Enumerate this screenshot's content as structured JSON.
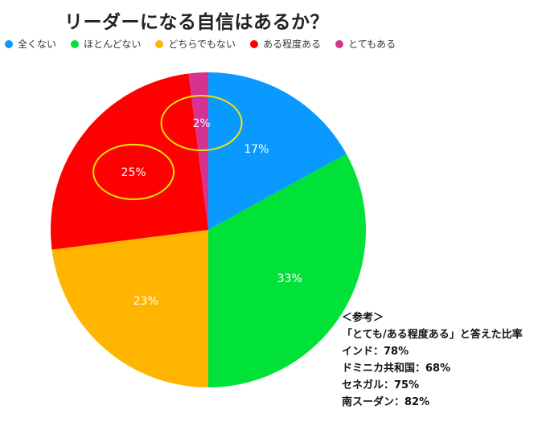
{
  "chart_data": {
    "type": "pie",
    "title": "リーダーになる自信はあるか？",
    "categories": [
      "全くない",
      "ほとんどない",
      "どちらでもない",
      "ある程度ある",
      "とてもある"
    ],
    "values": [
      17,
      33,
      23,
      25,
      2
    ],
    "labels": [
      "17%",
      "33%",
      "23%",
      "25%",
      "2%"
    ],
    "colors": [
      "#0a99ff",
      "#00e238",
      "#ffb400",
      "#ff0000",
      "#d63291"
    ],
    "legend_position": "top-left",
    "highlight_color": "#f0e600",
    "highlighted_slices": [
      "ある程度ある",
      "とてもある"
    ]
  },
  "note": {
    "lines": [
      "＜参考＞",
      "「とても/ある程度ある」と答えた比率",
      "インド：78%",
      "ドミニカ共和国：68%",
      "セネガル：75%",
      "南スーダン：82%"
    ]
  }
}
